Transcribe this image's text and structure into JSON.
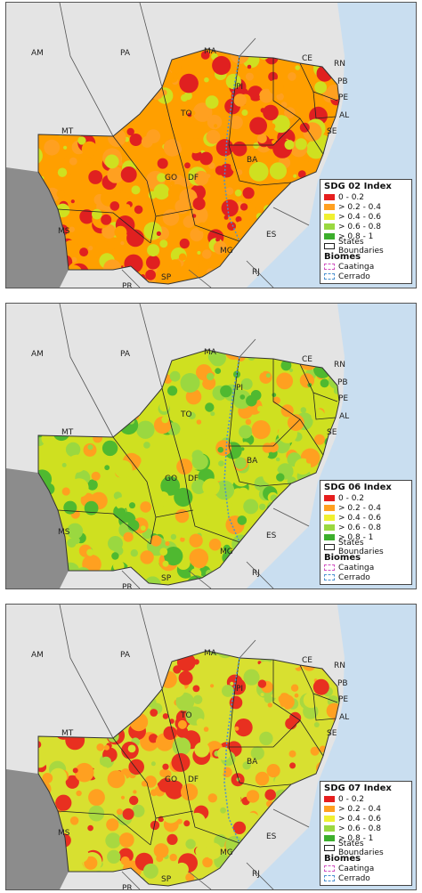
{
  "panels": [
    {
      "index_title": "SDG 02 Index",
      "dominant": [
        "#ff9f00",
        "#e02020",
        "#ffa020",
        "#cfe020"
      ]
    },
    {
      "index_title": "SDG 06 Index",
      "dominant": [
        "#cfe020",
        "#9ad840",
        "#ffa020",
        "#4fb930"
      ]
    },
    {
      "index_title": "SDG 07 Index",
      "dominant": [
        "#d8e030",
        "#ffa020",
        "#a8d840",
        "#e83020"
      ]
    }
  ],
  "state_labels": {
    "AM": "AM",
    "PA": "PA",
    "MA": "MA",
    "CE": "CE",
    "RN": "RN",
    "PB": "PB",
    "PE": "PE",
    "PI": "PI",
    "AL": "AL",
    "SE": "SE",
    "TO": "TO",
    "BA": "BA",
    "MT": "MT",
    "GO": "GO",
    "DF": "DF",
    "MS": "MS",
    "MG": "MG",
    "ES": "ES",
    "RJ": "RJ",
    "SP": "SP",
    "PR": "PR"
  },
  "legend": {
    "classes": [
      {
        "label": "0 - 0.2",
        "color": "#e61e1e"
      },
      {
        "label": "> 0.2 - 0.4",
        "color": "#ffa020"
      },
      {
        "label": "> 0.4 - 0.6",
        "color": "#f0f030"
      },
      {
        "label": "> 0.6 - 0.8",
        "color": "#9ad840"
      },
      {
        "label": "> 0.8 - 1",
        "color": "#3cae2c"
      }
    ],
    "states_label": "States Boundaries",
    "biomes_title": "Biomes",
    "caatinga_label": "Caatinga",
    "caatinga_color": "#d050c0",
    "cerrado_label": "Cerrado",
    "cerrado_color": "#4a90d0"
  },
  "colors": {
    "sea": "#c9def0",
    "land_outside": "#e4e4e4",
    "dark_gray": "#8c8c8c"
  }
}
